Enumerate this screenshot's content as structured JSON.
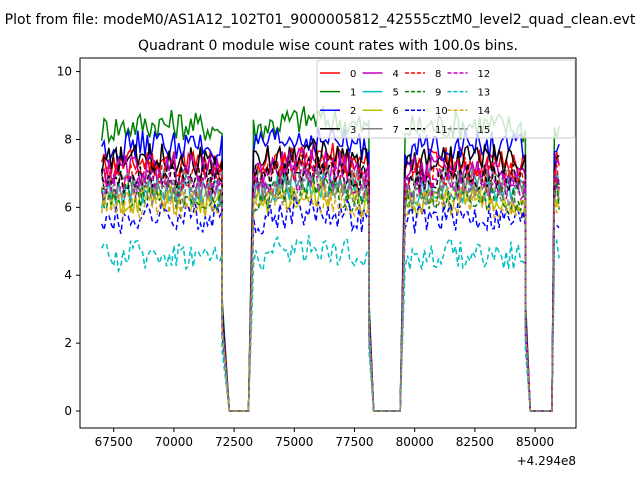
{
  "figure": {
    "suptitle": "Plot from file: modeM0/AS1A12_102T01_9000005812_42555cztM0_level2_quad_clean.evt",
    "title": "Quadrant 0 module wise count rates with 100.0s bins."
  },
  "chart_data": {
    "type": "line",
    "title": "Quadrant 0 module wise count rates with 100.0s bins.",
    "xlabel": "",
    "ylabel": "",
    "x_offset_label": "+4.294e8",
    "x_ticks": [
      67500,
      70000,
      72500,
      75000,
      77500,
      80000,
      82500,
      85000
    ],
    "x_tick_labels": [
      "67500",
      "70000",
      "72500",
      "75000",
      "77500",
      "80000",
      "82500",
      "85000"
    ],
    "y_ticks": [
      0,
      2,
      4,
      6,
      8,
      10
    ],
    "y_tick_labels": [
      "0",
      "2",
      "4",
      "6",
      "8",
      "10"
    ],
    "xlim": [
      66100,
      86700
    ],
    "ylim": [
      -0.5,
      10.4
    ],
    "grid": false,
    "legend_position": "top-right",
    "legend_columns": 6,
    "gaps": [
      [
        72000,
        72300,
        73100,
        73300
      ],
      [
        78100,
        78300,
        79400,
        79600
      ],
      [
        84600,
        84800,
        85700,
        85800
      ]
    ],
    "segments": [
      [
        67000,
        72000
      ],
      [
        73300,
        78100
      ],
      [
        79600,
        84600
      ],
      [
        85800,
        86000
      ]
    ],
    "series": [
      {
        "name": "0",
        "color": "#ff0000",
        "dash": "solid",
        "level": 7.2
      },
      {
        "name": "1",
        "color": "#008000",
        "dash": "solid",
        "level": 8.3
      },
      {
        "name": "2",
        "color": "#0000ff",
        "dash": "solid",
        "level": 7.7
      },
      {
        "name": "3",
        "color": "#000000",
        "dash": "solid",
        "level": 7.3
      },
      {
        "name": "4",
        "color": "#bf00bf",
        "dash": "solid",
        "level": 7.0
      },
      {
        "name": "5",
        "color": "#00bfbf",
        "dash": "solid",
        "level": 6.4
      },
      {
        "name": "6",
        "color": "#bfbf00",
        "dash": "solid",
        "level": 6.1
      },
      {
        "name": "7",
        "color": "#808080",
        "dash": "solid",
        "level": 6.6
      },
      {
        "name": "8",
        "color": "#ff0000",
        "dash": "dashed",
        "level": 6.9
      },
      {
        "name": "9",
        "color": "#008000",
        "dash": "dashed",
        "level": 6.2
      },
      {
        "name": "10",
        "color": "#0000ff",
        "dash": "dashed",
        "level": 5.6
      },
      {
        "name": "11",
        "color": "#000000",
        "dash": "dashed",
        "level": 6.8
      },
      {
        "name": "12",
        "color": "#bf00bf",
        "dash": "dashed",
        "level": 6.6
      },
      {
        "name": "13",
        "color": "#00bfbf",
        "dash": "dashed",
        "level": 4.5
      },
      {
        "name": "14",
        "color": "#daa520",
        "dash": "dashed",
        "level": 6.0
      },
      {
        "name": "15",
        "color": "#808080",
        "dash": "dashed",
        "level": 6.3
      }
    ]
  }
}
